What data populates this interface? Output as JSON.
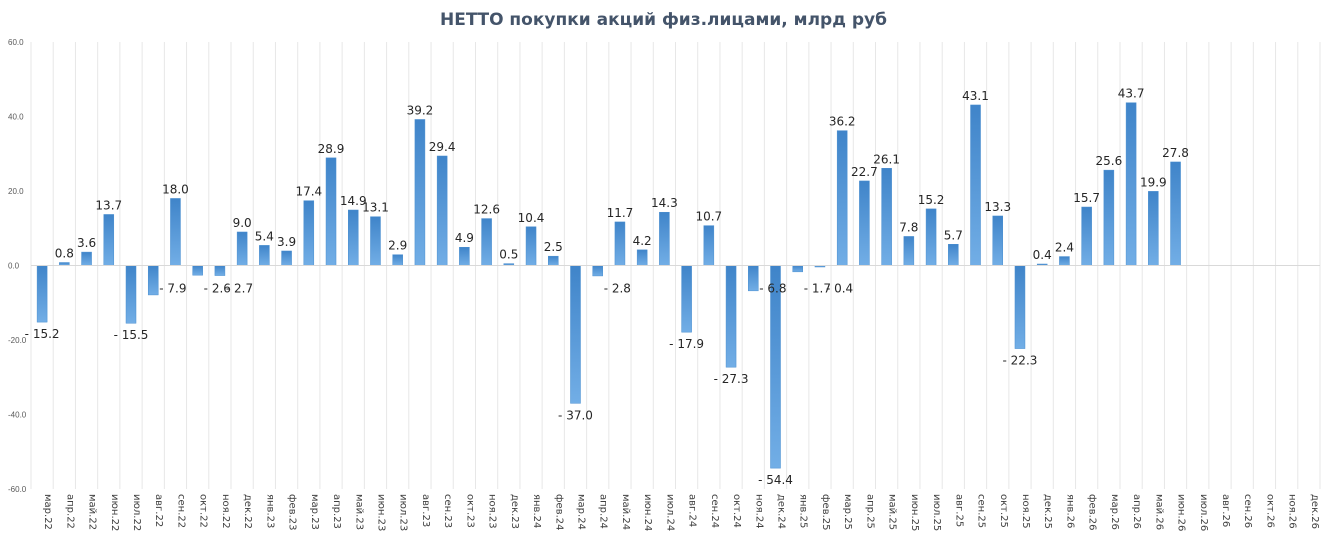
{
  "chart_data": {
    "type": "bar",
    "title": "НЕТТО покупки акций физ.лицами, млрд руб",
    "xlabel": "",
    "ylabel": "",
    "ylim": [
      -60,
      60
    ],
    "yticks": [
      "60.0",
      "40.0",
      "20.0",
      "0.0",
      "-20.0",
      "-40.0",
      "-60.0"
    ],
    "grid": "vertical",
    "legend": "none",
    "bar_color": "#4a8fd0",
    "categories": [
      "мар.22",
      "апр.22",
      "май.22",
      "июн.22",
      "июл.22",
      "авг.22",
      "сен.22",
      "окт.22",
      "ноя.22",
      "дек.22",
      "янв.23",
      "фев.23",
      "мар.23",
      "апр.23",
      "май.23",
      "июн.23",
      "июл.23",
      "авг.23",
      "сен.23",
      "окт.23",
      "ноя.23",
      "дек.23",
      "янв.24",
      "фев.24",
      "мар.24",
      "апр.24",
      "май.24",
      "июн.24",
      "июл.24",
      "авг.24",
      "сен.24",
      "окт.24",
      "ноя.24",
      "дек.24",
      "янв.25",
      "фев.25",
      "мар.25",
      "апр.25",
      "май.25",
      "июн.25",
      "июл.25",
      "авг.25",
      "сен.25",
      "окт.25",
      "ноя.25",
      "дек.25",
      "янв.26",
      "фев.26",
      "мар.26",
      "апр.26",
      "май.26",
      "июн.26",
      "июл.26",
      "авг.26",
      "сен.26",
      "окт.26",
      "ноя.26",
      "дек.26"
    ],
    "values": [
      -15.2,
      0.8,
      3.6,
      13.7,
      -15.5,
      -7.9,
      18.0,
      -2.6,
      -2.7,
      9.0,
      5.4,
      3.9,
      17.4,
      28.9,
      14.9,
      13.1,
      2.9,
      39.2,
      29.4,
      4.9,
      12.6,
      0.5,
      10.4,
      2.5,
      -37.0,
      -2.8,
      11.7,
      4.2,
      14.3,
      -17.9,
      10.7,
      -27.3,
      -6.8,
      -54.4,
      -1.7,
      -0.4,
      36.2,
      22.7,
      26.1,
      7.8,
      15.2,
      5.7,
      43.1,
      13.3,
      -22.3,
      0.4,
      2.4,
      15.7,
      25.6,
      43.7,
      19.9,
      27.8,
      null,
      null,
      null,
      null,
      null,
      null
    ],
    "data_labels": [
      "- 15.2",
      "0.8",
      "3.6",
      "13.7",
      "- 15.5",
      "- 7.9",
      "18.0",
      "- 2.6",
      "- 2.7",
      "9.0",
      "5.4",
      "3.9",
      "17.4",
      "28.9",
      "14.9",
      "13.1",
      "2.9",
      "39.2",
      "29.4",
      "4.9",
      "12.6",
      "0.5",
      "10.4",
      "2.5",
      "- 37.0",
      "- 2.8",
      "11.7",
      "4.2",
      "14.3",
      "- 17.9",
      "10.7",
      "- 27.3",
      "- 6.8",
      "- 54.4",
      "- 1.7",
      "- 0.4",
      "36.2",
      "22.7",
      "26.1",
      "7.8",
      "15.2",
      "5.7",
      "43.1",
      "13.3",
      "- 22.3",
      "0.4",
      "2.4",
      "15.7",
      "25.6",
      "43.7",
      "19.9",
      "27.8",
      "",
      "",
      "",
      "",
      "",
      ""
    ]
  }
}
